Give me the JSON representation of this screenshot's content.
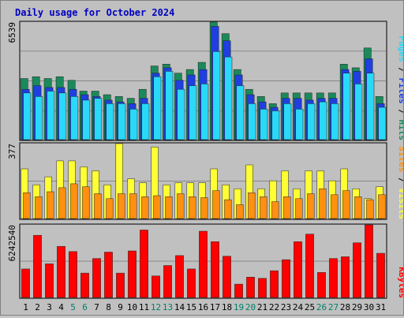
{
  "title": "Daily usage for October 2024",
  "colors": {
    "hits": "#1b8a5a",
    "files": "#1f3fe0",
    "pages": "#2ad8f8",
    "visits": "#ffff33",
    "sites": "#ff9010",
    "kbytes": "#ff0000",
    "title": "#0000c0",
    "weekend_day": "#00806a",
    "weekday_day": "#000000"
  },
  "chart_data": [
    {
      "type": "bar",
      "name": "hits-files-pages",
      "axis_max_label": "6539",
      "right_label_parts": [
        "Pages",
        "Files",
        "Hits"
      ],
      "categories": [
        "1",
        "2",
        "3",
        "4",
        "5",
        "6",
        "7",
        "8",
        "9",
        "10",
        "11",
        "12",
        "13",
        "14",
        "15",
        "16",
        "17",
        "18",
        "19",
        "20",
        "21",
        "22",
        "23",
        "24",
        "25",
        "26",
        "27",
        "28",
        "29",
        "30",
        "31"
      ],
      "series": [
        {
          "name": "Hits",
          "values": [
            3400,
            3500,
            3400,
            3500,
            3300,
            2700,
            2700,
            2500,
            2400,
            2300,
            2800,
            4100,
            4200,
            3700,
            3900,
            4300,
            6539,
            5900,
            3900,
            2800,
            2400,
            2000,
            2600,
            2600,
            2600,
            2600,
            2600,
            4200,
            4000,
            5100,
            2400
          ]
        },
        {
          "name": "Files",
          "values": [
            2800,
            3000,
            2900,
            2900,
            2800,
            2500,
            2400,
            2200,
            2100,
            2000,
            2300,
            3700,
            4000,
            3300,
            3600,
            3900,
            6300,
            5500,
            3600,
            2500,
            2100,
            1800,
            2300,
            2300,
            2200,
            2300,
            2300,
            3900,
            3800,
            4500,
            2000
          ]
        },
        {
          "name": "Pages",
          "values": [
            2600,
            2400,
            2700,
            2600,
            2400,
            2200,
            2300,
            2000,
            2000,
            1700,
            2000,
            3500,
            3800,
            2800,
            3000,
            3100,
            4900,
            4600,
            3000,
            2000,
            1700,
            1600,
            2000,
            1700,
            2000,
            2100,
            2000,
            3700,
            3100,
            3700,
            1800
          ]
        }
      ],
      "ylim": [
        0,
        6539
      ]
    },
    {
      "type": "bar",
      "name": "visits-sites",
      "axis_max_label": "377",
      "right_label_parts": [
        "Sites",
        "Visits"
      ],
      "categories": [
        "1",
        "2",
        "3",
        "4",
        "5",
        "6",
        "7",
        "8",
        "9",
        "10",
        "11",
        "12",
        "13",
        "14",
        "15",
        "16",
        "17",
        "18",
        "19",
        "20",
        "21",
        "22",
        "23",
        "24",
        "25",
        "26",
        "27",
        "28",
        "29",
        "30",
        "31"
      ],
      "series": [
        {
          "name": "Visits",
          "values": [
            250,
            170,
            210,
            290,
            290,
            260,
            240,
            170,
            377,
            200,
            180,
            360,
            170,
            180,
            180,
            180,
            250,
            170,
            150,
            270,
            150,
            190,
            240,
            150,
            240,
            240,
            190,
            250,
            150,
            100,
            160
          ]
        },
        {
          "name": "Sites",
          "values": [
            130,
            110,
            135,
            155,
            175,
            160,
            125,
            100,
            125,
            125,
            110,
            115,
            110,
            125,
            110,
            105,
            140,
            95,
            70,
            130,
            110,
            85,
            110,
            100,
            125,
            150,
            120,
            140,
            110,
            95,
            120
          ]
        }
      ],
      "ylim": [
        0,
        377
      ]
    },
    {
      "type": "bar",
      "name": "kbytes",
      "axis_max_label": "6242540",
      "right_label_parts": [
        "KBytes"
      ],
      "categories": [
        "1",
        "2",
        "3",
        "4",
        "5",
        "6",
        "7",
        "8",
        "9",
        "10",
        "11",
        "12",
        "13",
        "14",
        "15",
        "16",
        "17",
        "18",
        "19",
        "20",
        "21",
        "22",
        "23",
        "24",
        "25",
        "26",
        "27",
        "28",
        "29",
        "30",
        "31"
      ],
      "series": [
        {
          "name": "KBytes",
          "values": [
            2450000,
            5350000,
            2900000,
            4400000,
            3950000,
            2100000,
            3350000,
            3900000,
            2100000,
            4000000,
            5800000,
            1850000,
            2750000,
            3600000,
            2450000,
            5700000,
            4800000,
            3550000,
            1150000,
            1750000,
            1650000,
            2300000,
            3250000,
            4800000,
            5450000,
            2150000,
            3350000,
            3500000,
            4700000,
            6242540,
            3800000
          ]
        }
      ],
      "ylim": [
        0,
        6242540
      ]
    }
  ],
  "weekend_days": [
    "5",
    "6",
    "12",
    "13",
    "19",
    "20",
    "26",
    "27"
  ]
}
